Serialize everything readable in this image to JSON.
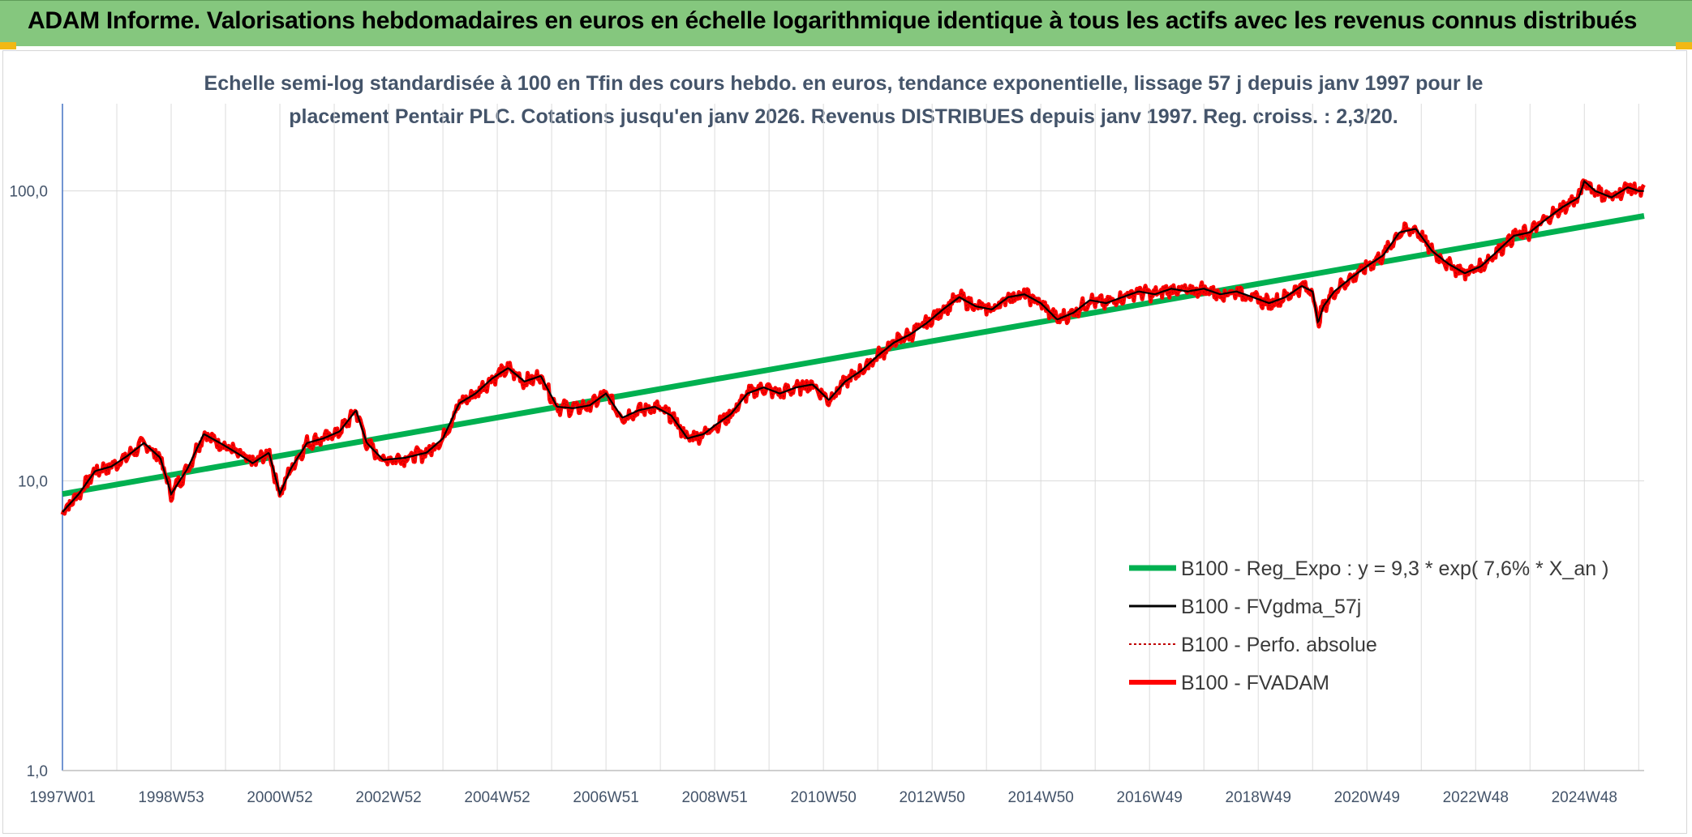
{
  "banner": {
    "title": "ADAM Informe. Valorisations hebdomadaires en euros en échelle logarithmique identique à tous les actifs avec les revenus connus distribués"
  },
  "colors": {
    "banner_bg": "#85c77e",
    "corner_accent": "#f1b814",
    "series_reg": "#00b050",
    "series_fvgdma": "#000000",
    "series_perfo": "#c00000",
    "series_fvadam": "#ff0000"
  },
  "chart_data": {
    "type": "line",
    "subtitle_line1": "Echelle semi-log standardisée à 100 en Tfin des cours hebdo. en euros, tendance exponentielle, lissage 57 j depuis janv 1997 pour le",
    "subtitle_line2": "placement Pentair PLC. Cotations jusqu'en janv 2026. Revenus DISTRIBUES depuis janv 1997. Reg. croiss. : 2,3/20.",
    "y_scale": "log",
    "ylim": [
      1,
      200
    ],
    "y_ticks": [
      "1,0",
      "10,0",
      "100,0"
    ],
    "x_tick_labels": [
      "1997W01",
      "1998W53",
      "2000W52",
      "2002W52",
      "2004W52",
      "2006W51",
      "2008W51",
      "2010W50",
      "2012W50",
      "2014W50",
      "2016W49",
      "2018W49",
      "2020W49",
      "2022W48",
      "2024W48"
    ],
    "x_tick_years": [
      1997.0,
      1999.0,
      2001.0,
      2003.0,
      2005.0,
      2007.0,
      2009.0,
      2011.0,
      2013.0,
      2015.0,
      2017.0,
      2019.0,
      2021.0,
      2023.0,
      2025.0
    ],
    "xlim": [
      1997.0,
      2026.1
    ],
    "grid": true,
    "legend_position": "bottom-right",
    "series": [
      {
        "name": "B100 - Reg_Expo : y = 9,3 * exp( 7,6% *  X_an )",
        "style": "reg",
        "x": [
          1997.0,
          2026.1
        ],
        "values": [
          9.0,
          82.0
        ]
      },
      {
        "name": "B100 - FVgdma_57j",
        "style": "smooth",
        "x": [],
        "values": []
      },
      {
        "name": "B100 - Perfo. absolue",
        "style": "dotted",
        "x": [],
        "values": []
      },
      {
        "name": "B100 - FVADAM",
        "style": "main",
        "x": [
          1997.0,
          1997.3,
          1997.6,
          1997.9,
          1998.2,
          1998.5,
          1998.8,
          1999.0,
          1999.3,
          1999.6,
          1999.9,
          2000.2,
          2000.5,
          2000.8,
          2001.0,
          2001.2,
          2001.5,
          2001.8,
          2002.1,
          2002.4,
          2002.6,
          2002.9,
          2003.3,
          2003.7,
          2004.0,
          2004.3,
          2004.6,
          2004.9,
          2005.2,
          2005.5,
          2005.8,
          2006.1,
          2006.4,
          2006.7,
          2007.0,
          2007.3,
          2007.6,
          2007.9,
          2008.2,
          2008.5,
          2008.8,
          2009.0,
          2009.3,
          2009.6,
          2009.9,
          2010.2,
          2010.5,
          2010.8,
          2011.1,
          2011.4,
          2011.7,
          2012.0,
          2012.3,
          2012.6,
          2012.9,
          2013.2,
          2013.5,
          2013.8,
          2014.1,
          2014.4,
          2014.7,
          2015.0,
          2015.3,
          2015.6,
          2015.9,
          2016.2,
          2016.5,
          2016.8,
          2017.1,
          2017.4,
          2017.7,
          2018.0,
          2018.3,
          2018.6,
          2018.9,
          2019.2,
          2019.5,
          2019.8,
          2020.0,
          2020.1,
          2020.2,
          2020.4,
          2020.7,
          2021.0,
          2021.3,
          2021.6,
          2021.9,
          2022.2,
          2022.5,
          2022.8,
          2023.1,
          2023.4,
          2023.7,
          2024.0,
          2024.3,
          2024.6,
          2024.9,
          2025.0,
          2025.2,
          2025.5,
          2025.8,
          2026.0
        ],
        "values": [
          7.8,
          9.0,
          10.8,
          11.2,
          12.2,
          13.5,
          12.0,
          9.0,
          11.0,
          14.5,
          13.5,
          12.5,
          11.5,
          12.5,
          9.0,
          11.0,
          13.5,
          14.0,
          14.8,
          17.5,
          13.5,
          11.8,
          12.0,
          12.5,
          14.0,
          18.5,
          20.0,
          22.5,
          24.5,
          22.0,
          23.0,
          18.0,
          17.8,
          18.2,
          20.0,
          16.5,
          17.5,
          18.0,
          16.8,
          14.0,
          14.5,
          15.5,
          17.0,
          20.0,
          21.0,
          20.0,
          21.0,
          21.5,
          19.0,
          22.0,
          24.0,
          27.0,
          30.0,
          32.0,
          35.0,
          39.0,
          43.0,
          40.0,
          39.0,
          43.0,
          44.0,
          41.0,
          36.0,
          38.0,
          42.0,
          41.0,
          43.0,
          45.0,
          44.0,
          46.0,
          45.0,
          46.0,
          44.0,
          45.0,
          43.0,
          41.0,
          43.0,
          47.0,
          45.0,
          35.0,
          40.0,
          45.0,
          50.0,
          55.0,
          60.0,
          72.0,
          74.0,
          62.0,
          56.0,
          52.0,
          55.0,
          62.0,
          70.0,
          72.0,
          80.0,
          88.0,
          95.0,
          108.0,
          100.0,
          95.0,
          103.0,
          100.0
        ]
      }
    ]
  }
}
